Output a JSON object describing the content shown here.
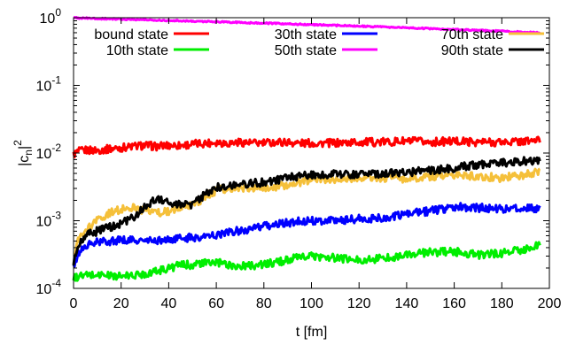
{
  "chart_data": {
    "type": "line",
    "title": "",
    "xlabel": "t [fm]",
    "ylabel": "|c_n|^2",
    "xlim": [
      0,
      200
    ],
    "ylim": [
      0.0001,
      1
    ],
    "yscale": "log",
    "grid": false,
    "legend_placement": "top",
    "x_ticks": [
      "0",
      "20",
      "40",
      "60",
      "80",
      "100",
      "120",
      "140",
      "160",
      "180",
      "200"
    ],
    "y_ticks": [
      {
        "base": "10",
        "exp": "0",
        "value": 1
      },
      {
        "base": "10",
        "exp": "-1",
        "value": 0.1
      },
      {
        "base": "10",
        "exp": "-2",
        "value": 0.01
      },
      {
        "base": "10",
        "exp": "-3",
        "value": 0.001
      },
      {
        "base": "10",
        "exp": "-4",
        "value": 0.0001
      }
    ],
    "x": [
      0,
      2,
      5,
      10,
      15,
      20,
      25,
      30,
      35,
      40,
      45,
      50,
      55,
      60,
      65,
      70,
      75,
      80,
      85,
      90,
      95,
      100,
      110,
      120,
      130,
      140,
      150,
      160,
      170,
      180,
      190,
      196
    ],
    "series": [
      {
        "name": "bound state",
        "color": "#ff0000",
        "values": [
          0.0095,
          0.0105,
          0.011,
          0.011,
          0.0115,
          0.012,
          0.0125,
          0.013,
          0.0125,
          0.013,
          0.013,
          0.0135,
          0.014,
          0.0145,
          0.014,
          0.0145,
          0.014,
          0.014,
          0.0145,
          0.0145,
          0.014,
          0.014,
          0.014,
          0.0145,
          0.0145,
          0.015,
          0.0145,
          0.015,
          0.0145,
          0.0145,
          0.015,
          0.0155
        ]
      },
      {
        "name": "10th state",
        "color": "#00ee00",
        "values": [
          0.00014,
          0.00015,
          0.000155,
          0.00016,
          0.000155,
          0.00015,
          0.000155,
          0.000165,
          0.00018,
          0.0002,
          0.00022,
          0.000225,
          0.000235,
          0.00024,
          0.000225,
          0.00021,
          0.00022,
          0.000225,
          0.00024,
          0.000265,
          0.000285,
          0.0003,
          0.00028,
          0.00026,
          0.00028,
          0.00031,
          0.00034,
          0.00035,
          0.00031,
          0.00033,
          0.00038,
          0.00044
        ]
      },
      {
        "name": "30th state",
        "color": "#0000ff",
        "values": [
          0.0002,
          0.00033,
          0.00042,
          0.00048,
          0.0005,
          0.00052,
          0.00051,
          0.0005,
          0.00051,
          0.00052,
          0.00055,
          0.00056,
          0.00058,
          0.00062,
          0.00067,
          0.00072,
          0.00076,
          0.00082,
          0.00088,
          0.00093,
          0.00098,
          0.001,
          0.00102,
          0.00106,
          0.0011,
          0.00125,
          0.0014,
          0.0016,
          0.00155,
          0.0015,
          0.00152,
          0.0015
        ]
      },
      {
        "name": "50th state",
        "color": "#ff00ff",
        "values": [
          1,
          0.99,
          0.98,
          0.97,
          0.96,
          0.95,
          0.94,
          0.93,
          0.92,
          0.91,
          0.9,
          0.89,
          0.88,
          0.87,
          0.86,
          0.85,
          0.84,
          0.83,
          0.82,
          0.81,
          0.8,
          0.79,
          0.77,
          0.75,
          0.73,
          0.71,
          0.69,
          0.67,
          0.65,
          0.63,
          0.61,
          0.6
        ]
      },
      {
        "name": "70th state",
        "color": "#f5c03a",
        "values": [
          0.0003,
          0.0005,
          0.0007,
          0.001,
          0.0013,
          0.0015,
          0.0016,
          0.0014,
          0.0013,
          0.0014,
          0.0016,
          0.0017,
          0.0022,
          0.0028,
          0.003,
          0.0029,
          0.003,
          0.0031,
          0.0032,
          0.0034,
          0.0037,
          0.0039,
          0.0041,
          0.0042,
          0.0043,
          0.0042,
          0.0044,
          0.0048,
          0.0045,
          0.0043,
          0.0048,
          0.0055
        ]
      },
      {
        "name": "90th state",
        "color": "#000000",
        "values": [
          0.00025,
          0.0004,
          0.0006,
          0.0007,
          0.0008,
          0.0009,
          0.0011,
          0.0016,
          0.0021,
          0.0019,
          0.0017,
          0.0017,
          0.0024,
          0.0031,
          0.0033,
          0.0035,
          0.0036,
          0.0037,
          0.0039,
          0.0043,
          0.0046,
          0.0048,
          0.0049,
          0.0049,
          0.005,
          0.0052,
          0.0055,
          0.006,
          0.0068,
          0.0072,
          0.0076,
          0.008
        ]
      }
    ]
  }
}
